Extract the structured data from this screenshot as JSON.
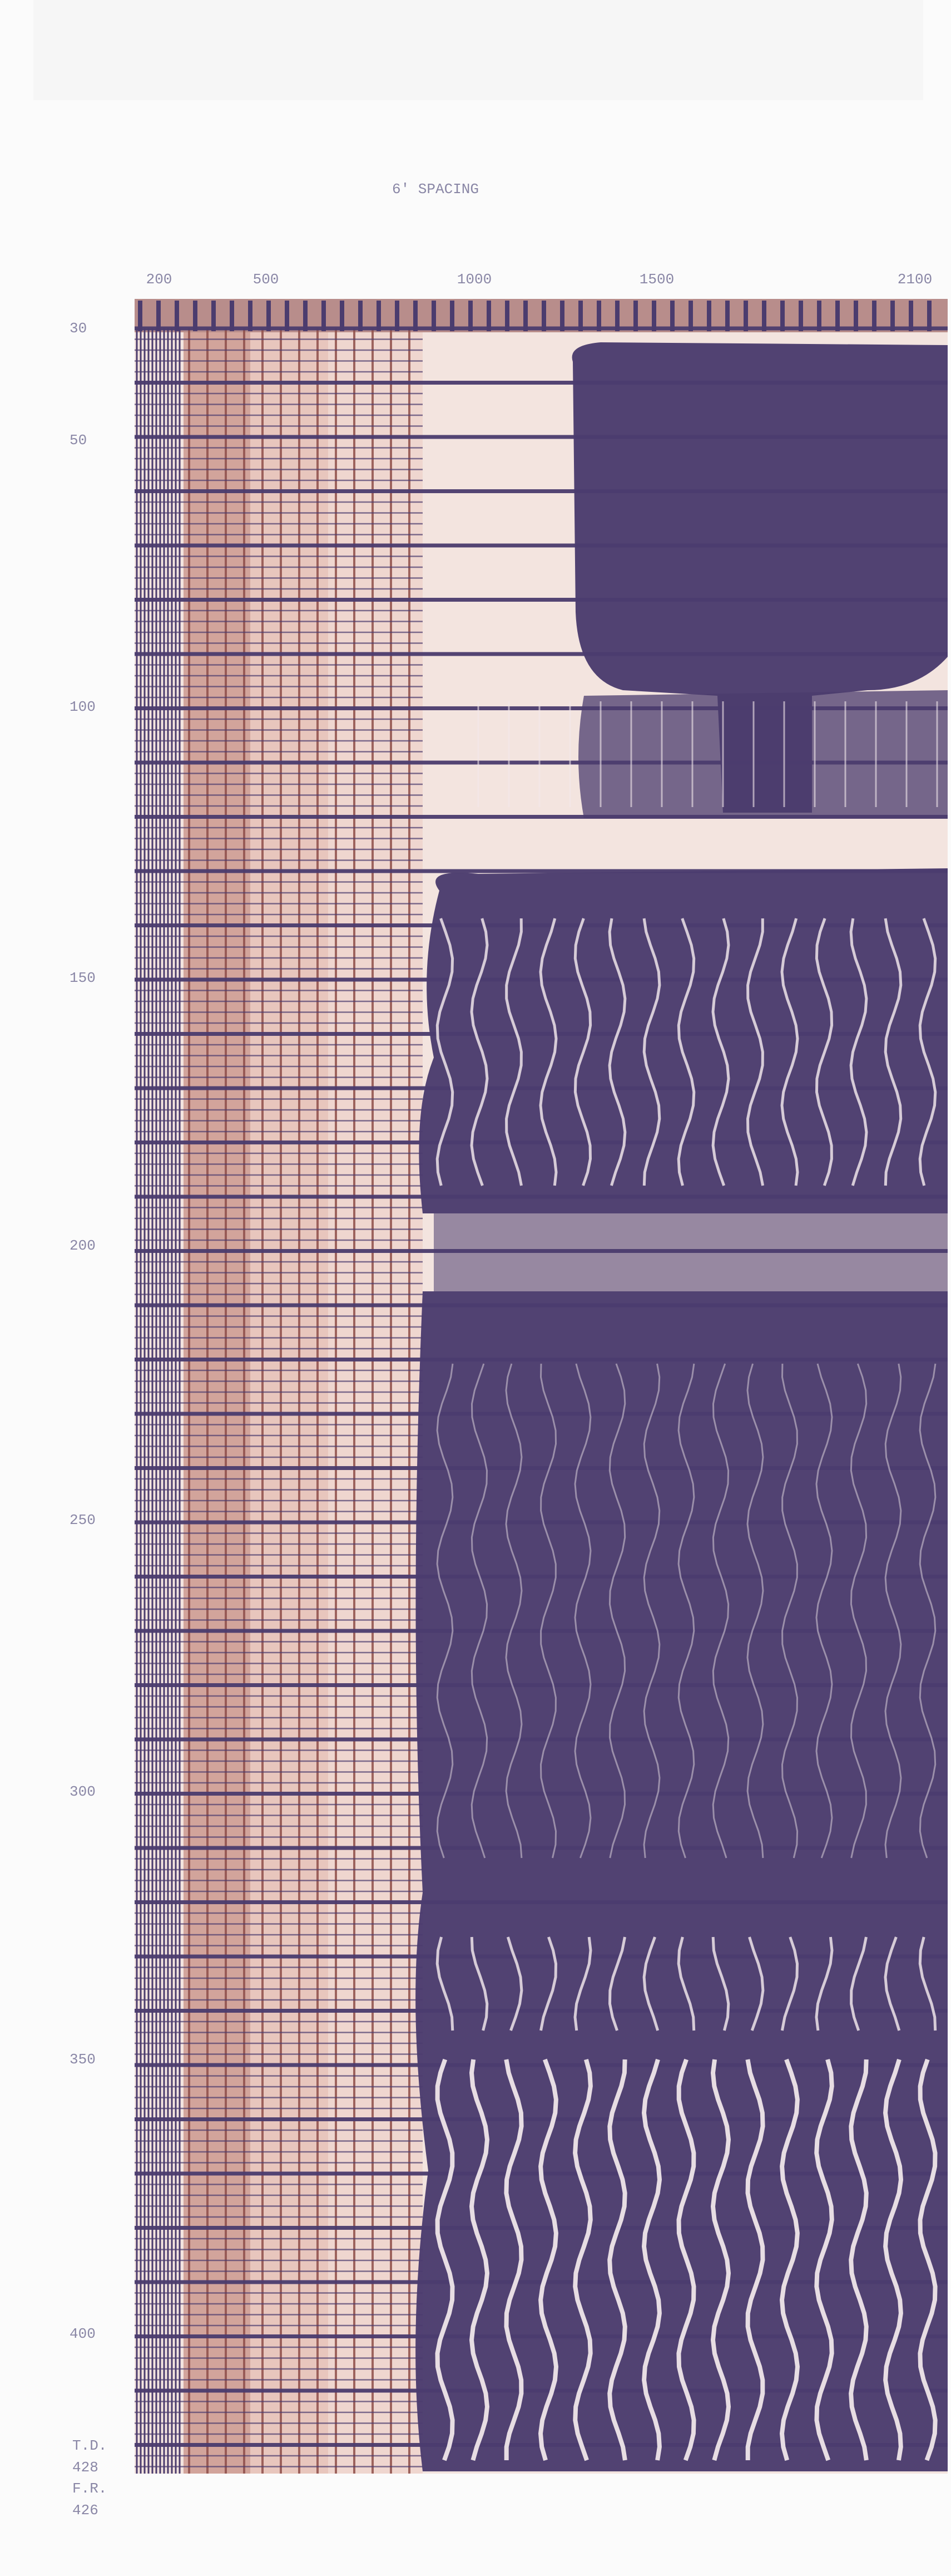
{
  "header": {
    "title": "6' SPACING"
  },
  "top_scale": {
    "labels": [
      "200",
      "500",
      "1000",
      "1500",
      "2100"
    ]
  },
  "depth_scale": {
    "labels": [
      "30",
      "50",
      "100",
      "150",
      "200",
      "250",
      "300",
      "350",
      "400"
    ]
  },
  "footer": {
    "lines": [
      "T.D.",
      "428",
      "F.R.",
      "426"
    ]
  }
}
